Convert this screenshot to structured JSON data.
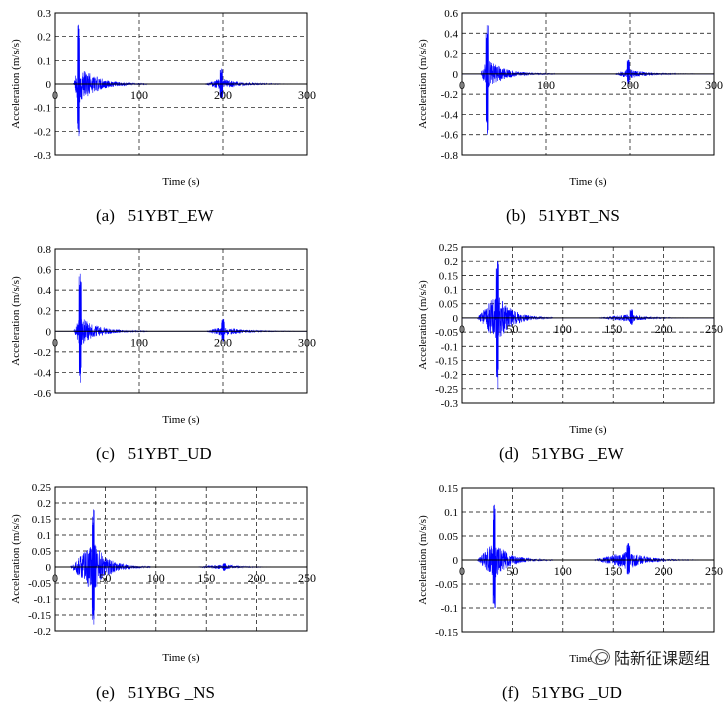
{
  "chart_data": [
    {
      "type": "line",
      "caption_label": "(a)",
      "caption_name": "51YBT_EW",
      "xlabel": "Time (s)",
      "ylabel": "Acceleration (m/s/s)",
      "xlim": [
        0,
        300
      ],
      "ylim": [
        -0.3,
        0.3
      ],
      "xticks": [
        0,
        100,
        200,
        300
      ],
      "yticks": [
        "-0.3",
        "-0.2",
        "-0.1",
        "0",
        "0.1",
        "0.2",
        "0.3"
      ],
      "grid": true,
      "color": "#0000ff",
      "bursts": [
        {
          "start": 22,
          "peak": 28,
          "end": 110,
          "pos_amp": 0.25,
          "neg_amp": 0.22,
          "base": 0.09
        },
        {
          "start": 178,
          "peak": 198,
          "end": 290,
          "pos_amp": 0.065,
          "neg_amp": 0.06,
          "base": 0.025
        }
      ]
    },
    {
      "type": "line",
      "caption_label": "(b)",
      "caption_name": "51YBT_NS",
      "xlabel": "Time (s)",
      "ylabel": "Acceleration (m/s/s)",
      "xlim": [
        0,
        300
      ],
      "ylim": [
        -0.8,
        0.6
      ],
      "xticks": [
        0,
        100,
        200,
        300
      ],
      "yticks": [
        "-0.8",
        "-0.6",
        "-0.4",
        "-0.2",
        "0",
        "0.2",
        "0.4",
        "0.6"
      ],
      "grid": true,
      "color": "#0000ff",
      "bursts": [
        {
          "start": 22,
          "peak": 30,
          "end": 110,
          "pos_amp": 0.48,
          "neg_amp": 0.6,
          "base": 0.15
        },
        {
          "start": 182,
          "peak": 198,
          "end": 280,
          "pos_amp": 0.14,
          "neg_amp": 0.1,
          "base": 0.05
        }
      ]
    },
    {
      "type": "line",
      "caption_label": "(c)",
      "caption_name": "51YBT_UD",
      "xlabel": "Time (s)",
      "ylabel": "Acceleration (m/s/s)",
      "xlim": [
        0,
        300
      ],
      "ylim": [
        -0.6,
        0.8
      ],
      "xticks": [
        0,
        100,
        200,
        300
      ],
      "yticks": [
        "-0.6",
        "-0.4",
        "-0.2",
        "0",
        "0.2",
        "0.4",
        "0.6",
        "0.8"
      ],
      "grid": true,
      "color": "#0000ff",
      "bursts": [
        {
          "start": 22,
          "peak": 30,
          "end": 110,
          "pos_amp": 0.56,
          "neg_amp": 0.5,
          "base": 0.15
        },
        {
          "start": 180,
          "peak": 200,
          "end": 285,
          "pos_amp": 0.12,
          "neg_amp": 0.1,
          "base": 0.05
        }
      ]
    },
    {
      "type": "line",
      "caption_label": "(d)",
      "caption_name": "51YBG _EW",
      "xlabel": "Time (s)",
      "ylabel": "Acceleration (m/s/s)",
      "xlim": [
        0,
        250
      ],
      "ylim": [
        -0.3,
        0.25
      ],
      "xticks": [
        0,
        50,
        100,
        150,
        200,
        250
      ],
      "yticks": [
        "-0.3",
        "-0.25",
        "-0.2",
        "-0.15",
        "-0.1",
        "-0.05",
        "0",
        "0.05",
        "0.1",
        "0.15",
        "0.2",
        "0.25"
      ],
      "grid": true,
      "color": "#0000ff",
      "bursts": [
        {
          "start": 15,
          "peak": 35,
          "end": 90,
          "pos_amp": 0.2,
          "neg_amp": 0.25,
          "base": 0.09
        },
        {
          "start": 135,
          "peak": 168,
          "end": 225,
          "pos_amp": 0.03,
          "neg_amp": 0.025,
          "base": 0.015
        }
      ]
    },
    {
      "type": "line",
      "caption_label": "(e)",
      "caption_name": "51YBG _NS",
      "xlabel": "Time (s)",
      "ylabel": "Acceleration (m/s/s)",
      "xlim": [
        0,
        250
      ],
      "ylim": [
        -0.2,
        0.25
      ],
      "xticks": [
        0,
        50,
        100,
        150,
        200,
        250
      ],
      "yticks": [
        "-0.2",
        "-0.15",
        "-0.1",
        "-0.05",
        "0",
        "0.05",
        "0.1",
        "0.15",
        "0.2",
        "0.25"
      ],
      "grid": true,
      "color": "#0000ff",
      "bursts": [
        {
          "start": 15,
          "peak": 38,
          "end": 95,
          "pos_amp": 0.18,
          "neg_amp": 0.18,
          "base": 0.08
        },
        {
          "start": 140,
          "peak": 168,
          "end": 228,
          "pos_amp": 0.012,
          "neg_amp": 0.012,
          "base": 0.008
        }
      ]
    },
    {
      "type": "line",
      "caption_label": "(f)",
      "caption_name": "51YBG _UD",
      "xlabel": "Time (s)",
      "ylabel": "Acceleration (m/s/s)",
      "xlim": [
        0,
        250
      ],
      "ylim": [
        -0.15,
        0.15
      ],
      "xticks": [
        0,
        50,
        100,
        150,
        200,
        250
      ],
      "yticks": [
        "-0.15",
        "-0.1",
        "-0.05",
        "0",
        "0.05",
        "0.1",
        "0.15"
      ],
      "grid": true,
      "color": "#0000ff",
      "bursts": [
        {
          "start": 15,
          "peak": 32,
          "end": 90,
          "pos_amp": 0.115,
          "neg_amp": 0.1,
          "base": 0.04
        },
        {
          "start": 130,
          "peak": 165,
          "end": 235,
          "pos_amp": 0.035,
          "neg_amp": 0.03,
          "base": 0.02
        }
      ]
    }
  ],
  "watermark": "陆新征课题组"
}
